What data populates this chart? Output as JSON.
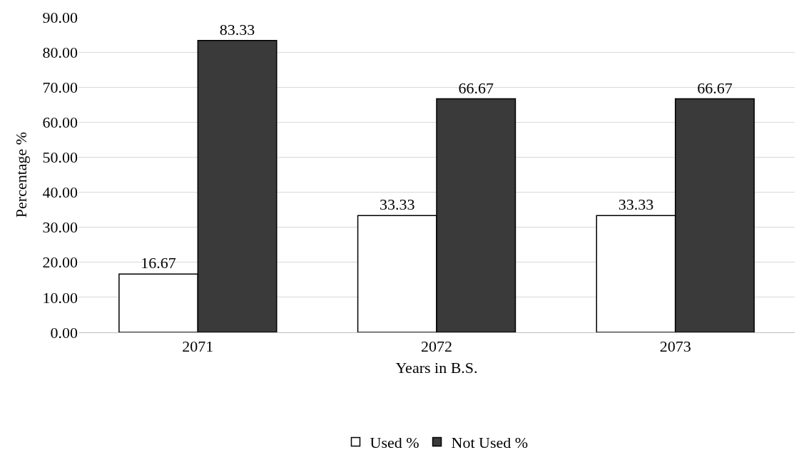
{
  "chart_data": {
    "type": "bar",
    "xlabel": "Years in B.S.",
    "ylabel": "Percentage %",
    "categories": [
      "2071",
      "2072",
      "2073"
    ],
    "series": [
      {
        "name": "Used %",
        "color": "#ffffff",
        "values": [
          16.67,
          33.33,
          33.33
        ]
      },
      {
        "name": "Not Used %",
        "color": "#3a3a3a",
        "values": [
          83.33,
          66.67,
          66.67
        ]
      }
    ],
    "data_labels": true,
    "ylim": [
      0,
      90
    ],
    "yticks": [
      {
        "value": 0,
        "label": "0.00"
      },
      {
        "value": 10,
        "label": "10.00"
      },
      {
        "value": 20,
        "label": "20.00"
      },
      {
        "value": 30,
        "label": "30.00"
      },
      {
        "value": 40,
        "label": "40.00"
      },
      {
        "value": 50,
        "label": "50.00"
      },
      {
        "value": 60,
        "label": "60.00"
      },
      {
        "value": 70,
        "label": "70.00"
      },
      {
        "value": 80,
        "label": "80.00"
      },
      {
        "value": 90,
        "label": "90.00"
      }
    ],
    "grid": "y",
    "legend": "bottom"
  }
}
